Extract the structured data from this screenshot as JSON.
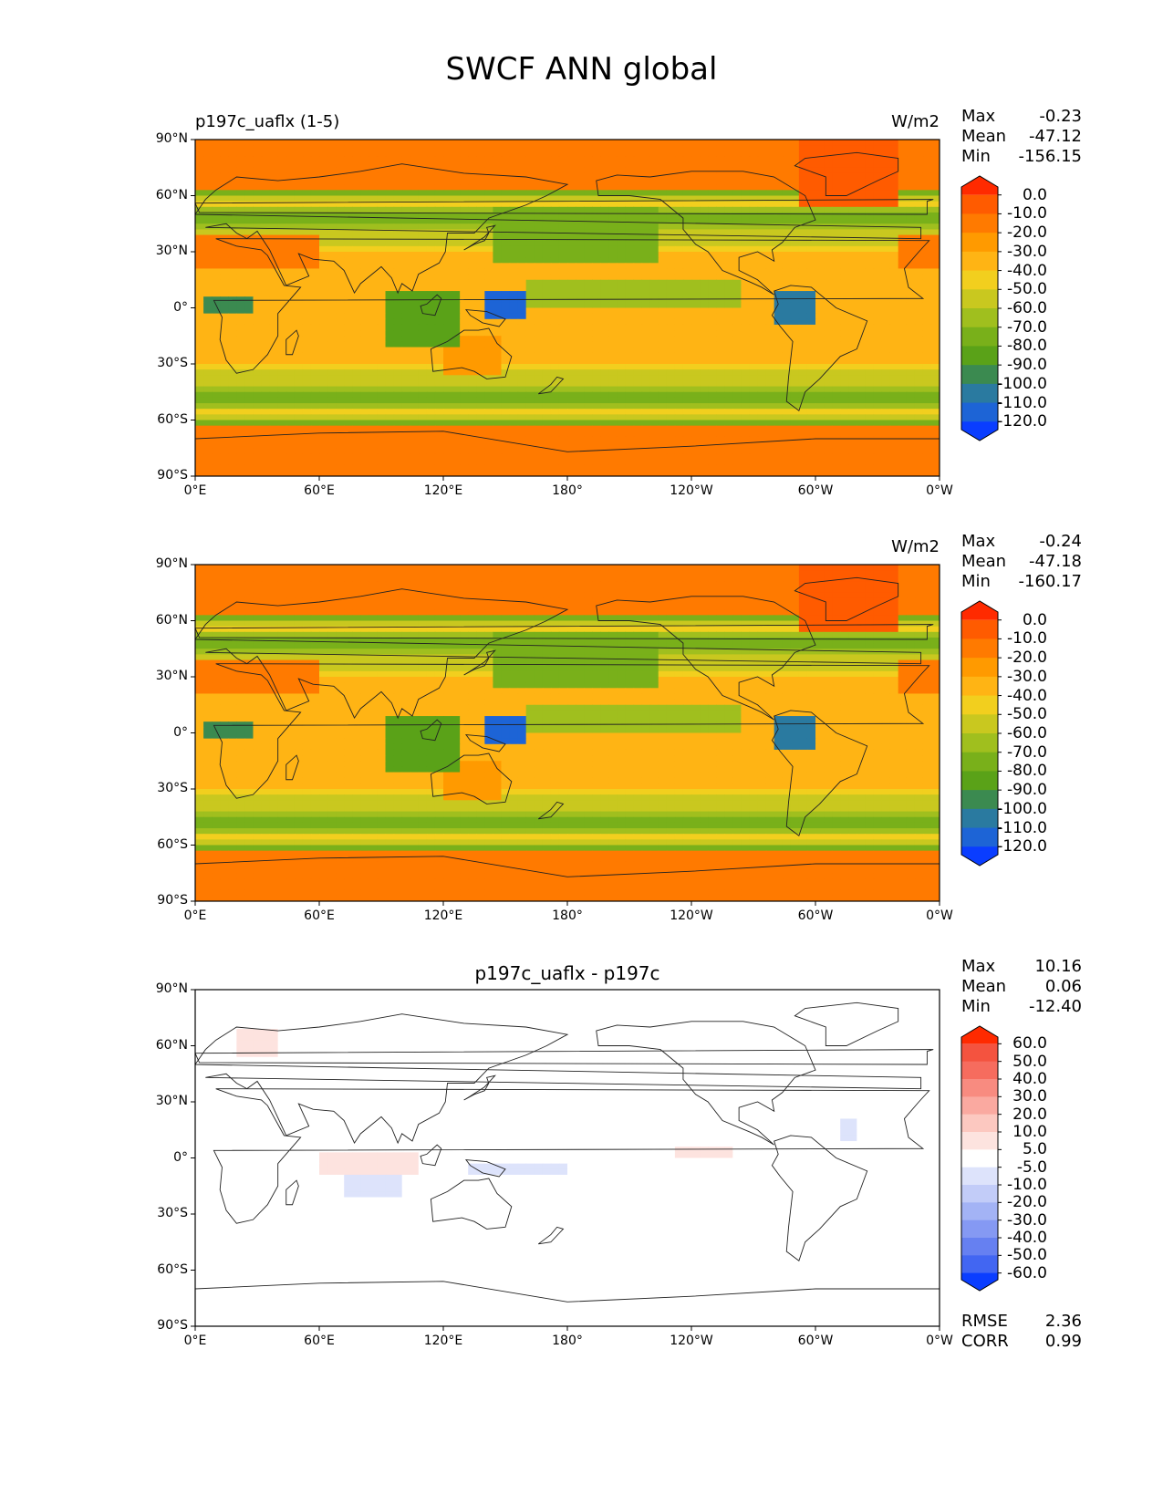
{
  "title": "SWCF ANN global",
  "panels": [
    {
      "id": "test",
      "title": "p197c_uaflx (1-5)",
      "units": "W/m2",
      "stats": [
        {
          "label": "Max",
          "value": "-0.23"
        },
        {
          "label": "Mean",
          "value": "-47.12"
        },
        {
          "label": "Min",
          "value": "-156.15"
        }
      ]
    },
    {
      "id": "ref",
      "title": "",
      "units": "W/m2",
      "stats": [
        {
          "label": "Max",
          "value": "-0.24"
        },
        {
          "label": "Mean",
          "value": "-47.18"
        },
        {
          "label": "Min",
          "value": "-160.17"
        }
      ]
    },
    {
      "id": "diff",
      "title": "p197c_uaflx - p197c",
      "units": "",
      "stats": [
        {
          "label": "Max",
          "value": "10.16"
        },
        {
          "label": "Mean",
          "value": "0.06"
        },
        {
          "label": "Min",
          "value": "-12.40"
        }
      ],
      "metrics": [
        {
          "label": "RMSE",
          "value": "2.36"
        },
        {
          "label": "CORR",
          "value": "0.99"
        }
      ]
    }
  ],
  "chart_data": [
    {
      "type": "heatmap",
      "title": "p197c_uaflx (1-5)",
      "units": "W/m2",
      "xlim": [
        0,
        360
      ],
      "ylim": [
        -90,
        90
      ],
      "xticks": [
        "0°E",
        "60°E",
        "120°E",
        "180°",
        "120°W",
        "60°W",
        "0°W"
      ],
      "yticks": [
        "90°N",
        "60°N",
        "30°N",
        "0°",
        "30°S",
        "60°S",
        "90°S"
      ],
      "colorbar": {
        "levels": [
          "0.0",
          "-10.0",
          "-20.0",
          "-30.0",
          "-40.0",
          "-50.0",
          "-60.0",
          "-70.0",
          "-80.0",
          "-90.0",
          "-100.0",
          "-110.0",
          "-120.0"
        ],
        "colors": [
          "#ff2a00",
          "#ff5b00",
          "#ff7a00",
          "#ff9a00",
          "#ffb414",
          "#f2cf1e",
          "#c9c81f",
          "#a0bf1e",
          "#79b01a",
          "#5aa218",
          "#3b8a50",
          "#2a7aa0",
          "#1d64d6",
          "#0a3dff"
        ]
      },
      "stats": {
        "max": -0.23,
        "mean": -47.12,
        "min": -156.15
      }
    },
    {
      "type": "heatmap",
      "title": "",
      "units": "W/m2",
      "xlim": [
        0,
        360
      ],
      "ylim": [
        -90,
        90
      ],
      "xticks": [
        "0°E",
        "60°E",
        "120°E",
        "180°",
        "120°W",
        "60°W",
        "0°W"
      ],
      "yticks": [
        "90°N",
        "60°N",
        "30°N",
        "0°",
        "30°S",
        "60°S",
        "90°S"
      ],
      "colorbar": {
        "levels": [
          "0.0",
          "-10.0",
          "-20.0",
          "-30.0",
          "-40.0",
          "-50.0",
          "-60.0",
          "-70.0",
          "-80.0",
          "-90.0",
          "-100.0",
          "-110.0",
          "-120.0"
        ],
        "colors": [
          "#ff2a00",
          "#ff5b00",
          "#ff7a00",
          "#ff9a00",
          "#ffb414",
          "#f2cf1e",
          "#c9c81f",
          "#a0bf1e",
          "#79b01a",
          "#5aa218",
          "#3b8a50",
          "#2a7aa0",
          "#1d64d6",
          "#0a3dff"
        ]
      },
      "stats": {
        "max": -0.24,
        "mean": -47.18,
        "min": -160.17
      }
    },
    {
      "type": "heatmap",
      "title": "p197c_uaflx - p197c",
      "units": "",
      "xlim": [
        0,
        360
      ],
      "ylim": [
        -90,
        90
      ],
      "xticks": [
        "0°E",
        "60°E",
        "120°E",
        "180°",
        "120°W",
        "60°W",
        "0°W"
      ],
      "yticks": [
        "90°N",
        "60°N",
        "30°N",
        "0°",
        "30°S",
        "60°S",
        "90°S"
      ],
      "colorbar": {
        "levels": [
          "60.0",
          "50.0",
          "40.0",
          "30.0",
          "20.0",
          "10.0",
          "5.0",
          "-5.0",
          "-10.0",
          "-20.0",
          "-30.0",
          "-40.0",
          "-50.0",
          "-60.0"
        ],
        "colors": [
          "#ff2a00",
          "#f4533f",
          "#f66c5e",
          "#f88b80",
          "#faa9a0",
          "#fcc8c0",
          "#fde3df",
          "#ffffff",
          "#dde3fb",
          "#c2ccf8",
          "#a3b3f5",
          "#8599f3",
          "#6680f1",
          "#4266f2",
          "#0a3dff"
        ]
      },
      "stats": {
        "max": 10.16,
        "mean": 0.06,
        "min": -12.4
      },
      "rmse": 2.36,
      "corr": 0.99
    }
  ]
}
